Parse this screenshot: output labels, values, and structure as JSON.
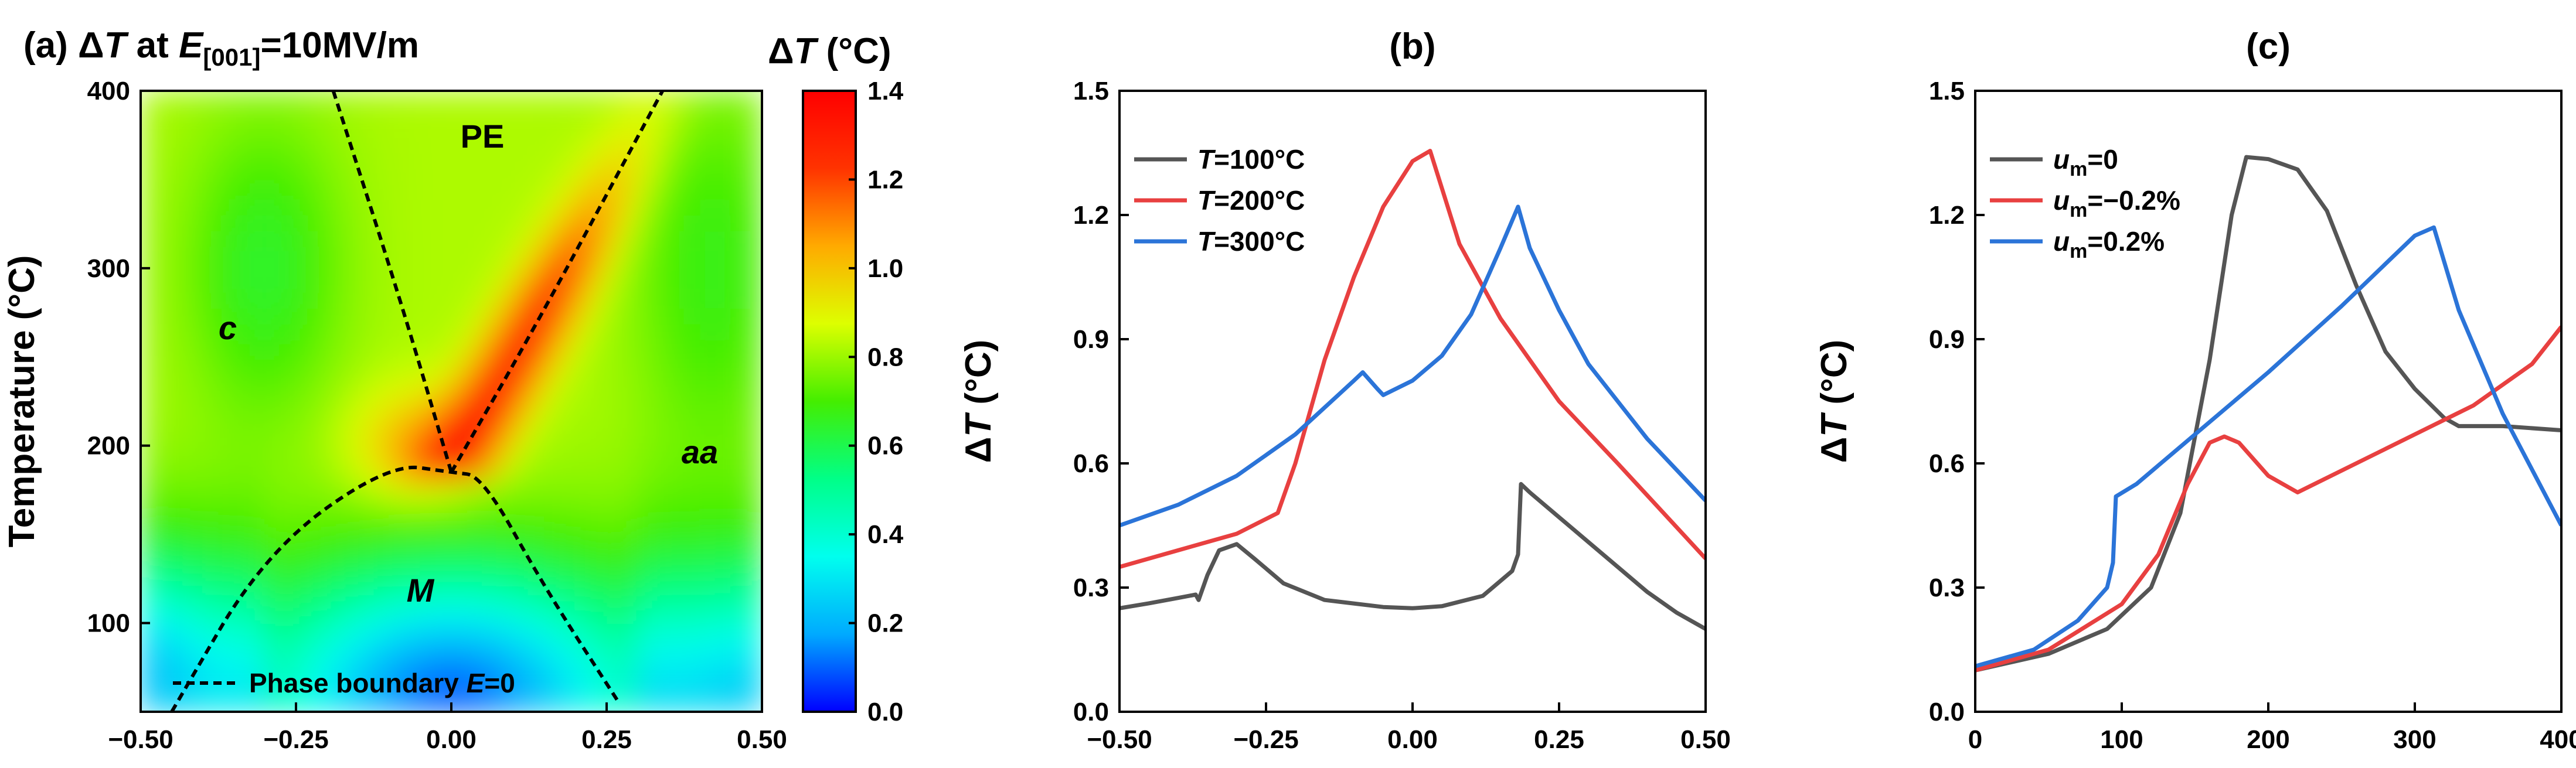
{
  "chart_data": [
    {
      "panel": "a",
      "type": "heatmap",
      "title": "(a) ΔT at E[001]=10MV/m",
      "title_parts": {
        "prefix": "(a) Δ",
        "dT": "T",
        "at": " at ",
        "E": "E",
        "sub": "[001]",
        "rest": "=10MV/m"
      },
      "xlabel": "",
      "ylabel": "Temperature (°C)",
      "xlim": [
        -0.5,
        0.5
      ],
      "ylim": [
        50,
        400
      ],
      "xticks": [
        -0.5,
        -0.25,
        0.0,
        0.25,
        0.5
      ],
      "xtick_labels": [
        "−0.50",
        "−0.25",
        "0.00",
        "0.25",
        "0.50"
      ],
      "yticks": [
        100,
        200,
        300,
        400
      ],
      "ytick_labels": [
        "100",
        "200",
        "300",
        "400"
      ],
      "colorbar": {
        "label": "ΔT (°C)",
        "label_parts": {
          "prefix": "Δ",
          "T": "T",
          "unit": " (°C)"
        },
        "range": [
          0.0,
          1.4
        ],
        "ticks": [
          0.0,
          0.2,
          0.4,
          0.6,
          0.8,
          1.0,
          1.2,
          1.4
        ],
        "tick_labels": [
          "0.0",
          "0.2",
          "0.4",
          "0.6",
          "0.8",
          "1.0",
          "1.2",
          "1.4"
        ],
        "colors": [
          "#0000ff",
          "#00aaff",
          "#00ffee",
          "#00ff88",
          "#44ee00",
          "#ddff00",
          "#ffaa00",
          "#ff3300",
          "#ff0000"
        ]
      },
      "regions": [
        {
          "label": "PE",
          "x": 0.05,
          "y": 368,
          "italic": false
        },
        {
          "label": "c",
          "x": -0.36,
          "y": 260,
          "italic": true
        },
        {
          "label": "aa",
          "x": 0.4,
          "y": 190,
          "italic": true
        },
        {
          "label": "M",
          "x": -0.05,
          "y": 112,
          "italic": true
        }
      ],
      "phase_boundaries": [
        {
          "name": "upper-left",
          "x": [
            -0.19,
            -0.08,
            0.0
          ],
          "y": [
            400,
            280,
            185
          ]
        },
        {
          "name": "upper-right",
          "x": [
            0.0,
            0.14,
            0.34
          ],
          "y": [
            185,
            270,
            400
          ]
        },
        {
          "name": "dome",
          "x": [
            -0.45,
            -0.3,
            -0.1,
            0.0,
            0.05,
            0.15,
            0.27
          ],
          "y": [
            50,
            140,
            190,
            185,
            183,
            120,
            55
          ]
        }
      ],
      "legend": {
        "label": "Phase boundary E=0",
        "prefix": "Phase boundary ",
        "E": "E",
        "suffix": "=0"
      }
    },
    {
      "panel": "b",
      "type": "line",
      "title": "(b)",
      "xlabel": "",
      "ylabel": "ΔT (°C)",
      "ylabel_parts": {
        "prefix": "Δ",
        "T": "T",
        "unit": " (°C)"
      },
      "xlim": [
        -0.5,
        0.5
      ],
      "ylim": [
        0.0,
        1.5
      ],
      "xticks": [
        -0.5,
        -0.25,
        0.0,
        0.25,
        0.5
      ],
      "xtick_labels": [
        "−0.50",
        "−0.25",
        "0.00",
        "0.25",
        "0.50"
      ],
      "yticks": [
        0.0,
        0.3,
        0.6,
        0.9,
        1.2,
        1.5
      ],
      "ytick_labels": [
        "0.0",
        "0.3",
        "0.6",
        "0.9",
        "1.2",
        "1.5"
      ],
      "series": [
        {
          "name": "T=100°C",
          "var": "T",
          "rest": "=100°C",
          "color": "#555555",
          "x": [
            -0.5,
            -0.45,
            -0.4,
            -0.37,
            -0.365,
            -0.35,
            -0.33,
            -0.3,
            -0.27,
            -0.22,
            -0.15,
            -0.05,
            0.0,
            0.05,
            0.12,
            0.17,
            0.18,
            0.185,
            0.2,
            0.25,
            0.3,
            0.35,
            0.4,
            0.45,
            0.5
          ],
          "y": [
            0.25,
            0.262,
            0.275,
            0.283,
            0.27,
            0.33,
            0.39,
            0.405,
            0.37,
            0.31,
            0.27,
            0.253,
            0.25,
            0.255,
            0.28,
            0.34,
            0.38,
            0.55,
            0.53,
            0.47,
            0.41,
            0.35,
            0.29,
            0.24,
            0.2
          ]
        },
        {
          "name": "T=200°C",
          "var": "T",
          "rest": "=200°C",
          "color": "#e84040",
          "x": [
            -0.5,
            -0.4,
            -0.3,
            -0.23,
            -0.2,
            -0.15,
            -0.1,
            -0.05,
            0.0,
            0.03,
            0.08,
            0.15,
            0.25,
            0.35,
            0.5
          ],
          "y": [
            0.35,
            0.39,
            0.43,
            0.48,
            0.6,
            0.85,
            1.05,
            1.22,
            1.33,
            1.355,
            1.13,
            0.95,
            0.75,
            0.6,
            0.37
          ]
        },
        {
          "name": "T=300°C",
          "var": "T",
          "rest": "=300°C",
          "color": "#2b74d8",
          "x": [
            -0.5,
            -0.4,
            -0.3,
            -0.2,
            -0.1,
            -0.085,
            -0.06,
            -0.05,
            0.0,
            0.05,
            0.1,
            0.15,
            0.18,
            0.2,
            0.25,
            0.3,
            0.4,
            0.5
          ],
          "y": [
            0.45,
            0.5,
            0.57,
            0.67,
            0.8,
            0.82,
            0.78,
            0.765,
            0.8,
            0.86,
            0.96,
            1.12,
            1.22,
            1.12,
            0.97,
            0.84,
            0.66,
            0.51
          ]
        }
      ]
    },
    {
      "panel": "c",
      "type": "line",
      "title": "(c)",
      "xlabel": "",
      "ylabel": "ΔT (°C)",
      "ylabel_parts": {
        "prefix": "Δ",
        "T": "T",
        "unit": " (°C)"
      },
      "xlim": [
        0,
        400
      ],
      "ylim": [
        0.0,
        1.5
      ],
      "xticks": [
        0,
        100,
        200,
        300,
        400
      ],
      "xtick_labels": [
        "0",
        "100",
        "200",
        "300",
        "400"
      ],
      "yticks": [
        0.0,
        0.3,
        0.6,
        0.9,
        1.2,
        1.5
      ],
      "ytick_labels": [
        "0.0",
        "0.3",
        "0.6",
        "0.9",
        "1.2",
        "1.5"
      ],
      "series": [
        {
          "name": "um=0",
          "var": "u",
          "sub": "m",
          "rest": "=0",
          "color": "#555555",
          "x": [
            0,
            50,
            90,
            120,
            140,
            160,
            175,
            185,
            200,
            220,
            240,
            260,
            280,
            300,
            320,
            330,
            360,
            400
          ],
          "y": [
            0.1,
            0.14,
            0.2,
            0.3,
            0.48,
            0.85,
            1.2,
            1.34,
            1.335,
            1.31,
            1.21,
            1.03,
            0.87,
            0.78,
            0.71,
            0.69,
            0.69,
            0.68
          ]
        },
        {
          "name": "um=−0.2%",
          "var": "u",
          "sub": "m",
          "rest": "=−0.2%",
          "color": "#e84040",
          "x": [
            0,
            50,
            100,
            125,
            145,
            160,
            170,
            180,
            200,
            220,
            260,
            300,
            340,
            380,
            400
          ],
          "y": [
            0.1,
            0.15,
            0.26,
            0.38,
            0.55,
            0.65,
            0.665,
            0.65,
            0.57,
            0.53,
            0.6,
            0.67,
            0.74,
            0.84,
            0.93
          ]
        },
        {
          "name": "um=0.2%",
          "var": "u",
          "sub": "m",
          "rest": "=0.2%",
          "color": "#2b74d8",
          "x": [
            0,
            40,
            70,
            90,
            94,
            96,
            110,
            150,
            200,
            250,
            300,
            313,
            330,
            360,
            400
          ],
          "y": [
            0.11,
            0.15,
            0.22,
            0.3,
            0.36,
            0.52,
            0.55,
            0.67,
            0.82,
            0.98,
            1.15,
            1.17,
            0.97,
            0.72,
            0.45
          ]
        }
      ]
    }
  ]
}
